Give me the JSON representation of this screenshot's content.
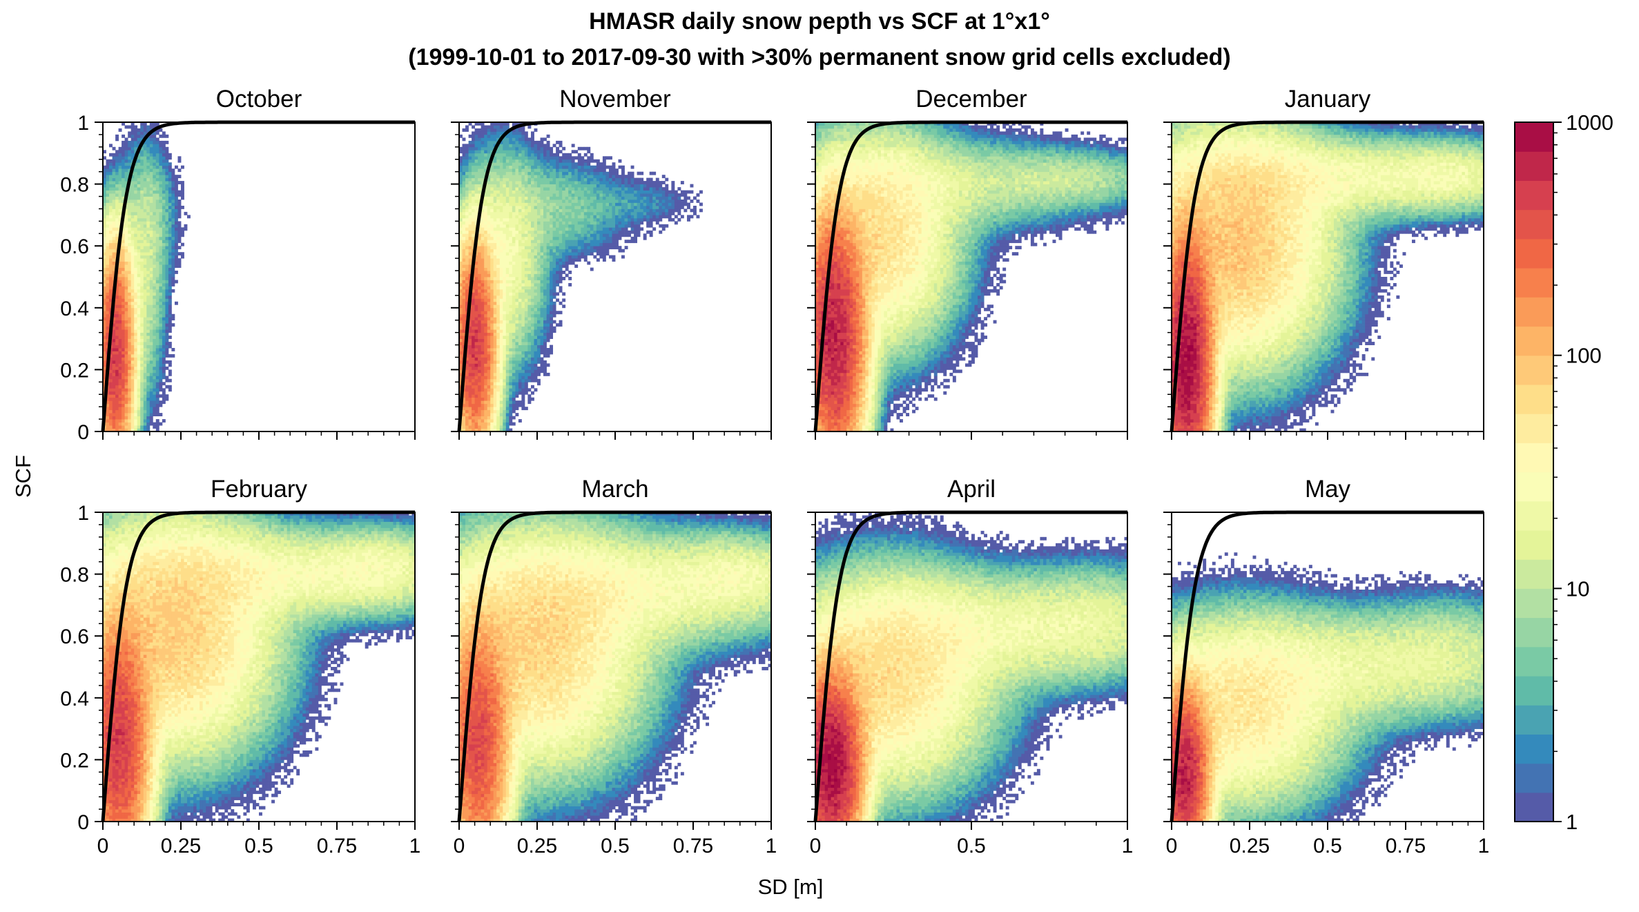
{
  "figure": {
    "title_line1": "HMASR daily snow pepth vs SCF at 1°x1°",
    "title_line2": "(1999-10-01 to 2017-09-30 with >30% permanent snow grid cells excluded)",
    "ylabel": "SCF",
    "xlabel": "SD [m]"
  },
  "chart_data": {
    "type": "heatmap",
    "panels": [
      {
        "title": "October",
        "xlim": [
          0,
          1
        ],
        "ylim": [
          0,
          1
        ],
        "xticks": [
          0,
          0.25,
          0.5,
          0.75,
          1
        ],
        "xtick_labels": [
          "",
          "",
          "",
          "",
          ""
        ],
        "yticks": [
          0,
          0.2,
          0.4,
          0.6,
          0.8,
          1
        ],
        "ytick_labels": [
          "0",
          "0.2",
          "0.4",
          "0.6",
          "0.8",
          "1"
        ],
        "blobs": [
          {
            "cx": 0.04,
            "cy": 0.25,
            "sx": 0.03,
            "sy": 0.18,
            "peak": 500
          },
          {
            "cx": 0.13,
            "cy": 0.5,
            "sx": 0.04,
            "sy": 0.22,
            "peak": 12
          },
          {
            "cx": 0.16,
            "cy": 0.7,
            "sx": 0.05,
            "sy": 0.12,
            "peak": 4
          }
        ]
      },
      {
        "title": "November",
        "xlim": [
          0,
          1
        ],
        "ylim": [
          0,
          1
        ],
        "xticks": [
          0,
          0.25,
          0.5,
          0.75,
          1
        ],
        "xtick_labels": [
          "",
          "",
          "",
          "",
          ""
        ],
        "yticks": [
          0,
          0.2,
          0.4,
          0.6,
          0.8,
          1
        ],
        "ytick_labels": [
          "",
          "",
          "",
          "",
          "",
          ""
        ],
        "blobs": [
          {
            "cx": 0.05,
            "cy": 0.28,
            "sx": 0.035,
            "sy": 0.17,
            "peak": 500
          },
          {
            "cx": 0.14,
            "cy": 0.55,
            "sx": 0.07,
            "sy": 0.18,
            "peak": 25
          },
          {
            "cx": 0.32,
            "cy": 0.72,
            "sx": 0.12,
            "sy": 0.09,
            "peak": 6
          },
          {
            "cx": 0.6,
            "cy": 0.74,
            "sx": 0.1,
            "sy": 0.05,
            "peak": 2
          }
        ]
      },
      {
        "title": "December",
        "xlim": [
          0,
          1
        ],
        "ylim": [
          0,
          1
        ],
        "xticks": [
          0,
          0.5,
          1
        ],
        "xtick_labels": [
          "",
          "",
          ""
        ],
        "yticks": [
          0,
          0.2,
          0.4,
          0.6,
          0.8,
          1
        ],
        "ytick_labels": [
          "",
          "",
          "",
          "",
          "",
          ""
        ],
        "blobs": [
          {
            "cx": 0.06,
            "cy": 0.3,
            "sx": 0.05,
            "sy": 0.2,
            "peak": 700
          },
          {
            "cx": 0.2,
            "cy": 0.62,
            "sx": 0.13,
            "sy": 0.18,
            "peak": 60
          },
          {
            "cx": 0.45,
            "cy": 0.8,
            "sx": 0.25,
            "sy": 0.08,
            "peak": 12
          },
          {
            "cx": 0.85,
            "cy": 0.82,
            "sx": 0.15,
            "sy": 0.05,
            "peak": 8
          }
        ]
      },
      {
        "title": "January",
        "xlim": [
          0,
          1
        ],
        "ylim": [
          0,
          1
        ],
        "xticks": [
          0,
          0.25,
          0.5,
          0.75,
          1
        ],
        "xtick_labels": [
          "",
          "",
          "",
          "",
          ""
        ],
        "yticks": [
          0,
          0.2,
          0.4,
          0.6,
          0.8,
          1
        ],
        "ytick_labels": [
          "",
          "",
          "",
          "",
          "",
          ""
        ],
        "blobs": [
          {
            "cx": 0.05,
            "cy": 0.22,
            "sx": 0.04,
            "sy": 0.2,
            "peak": 900
          },
          {
            "cx": 0.2,
            "cy": 0.6,
            "sx": 0.16,
            "sy": 0.2,
            "peak": 90
          },
          {
            "cx": 0.5,
            "cy": 0.82,
            "sx": 0.3,
            "sy": 0.07,
            "peak": 25
          },
          {
            "cx": 0.9,
            "cy": 0.83,
            "sx": 0.12,
            "sy": 0.06,
            "peak": 15
          }
        ]
      },
      {
        "title": "February",
        "xlim": [
          0,
          1
        ],
        "ylim": [
          0,
          1
        ],
        "xticks": [
          0,
          0.25,
          0.5,
          0.75,
          1
        ],
        "xtick_labels": [
          "0",
          "0.25",
          "0.5",
          "0.75",
          "1"
        ],
        "yticks": [
          0,
          0.2,
          0.4,
          0.6,
          0.8,
          1
        ],
        "ytick_labels": [
          "0",
          "0.2",
          "0.4",
          "0.6",
          "0.8",
          "1"
        ],
        "blobs": [
          {
            "cx": 0.05,
            "cy": 0.25,
            "sx": 0.05,
            "sy": 0.2,
            "peak": 500
          },
          {
            "cx": 0.22,
            "cy": 0.6,
            "sx": 0.17,
            "sy": 0.2,
            "peak": 80
          },
          {
            "cx": 0.55,
            "cy": 0.8,
            "sx": 0.3,
            "sy": 0.08,
            "peak": 25
          },
          {
            "cx": 0.9,
            "cy": 0.82,
            "sx": 0.12,
            "sy": 0.07,
            "peak": 15
          }
        ]
      },
      {
        "title": "March",
        "xlim": [
          0,
          1
        ],
        "ylim": [
          0,
          1
        ],
        "xticks": [
          0,
          0.25,
          0.5,
          0.75,
          1
        ],
        "xtick_labels": [
          "0",
          "0.25",
          "0.5",
          "0.75",
          "1"
        ],
        "yticks": [
          0,
          0.2,
          0.4,
          0.6,
          0.8,
          1
        ],
        "ytick_labels": [
          "",
          "",
          "",
          "",
          "",
          ""
        ],
        "blobs": [
          {
            "cx": 0.06,
            "cy": 0.25,
            "sx": 0.05,
            "sy": 0.2,
            "peak": 400
          },
          {
            "cx": 0.24,
            "cy": 0.55,
            "sx": 0.18,
            "sy": 0.2,
            "peak": 70
          },
          {
            "cx": 0.55,
            "cy": 0.75,
            "sx": 0.3,
            "sy": 0.1,
            "peak": 25
          },
          {
            "cx": 0.9,
            "cy": 0.8,
            "sx": 0.12,
            "sy": 0.07,
            "peak": 15
          }
        ]
      },
      {
        "title": "April",
        "xlim": [
          0,
          1
        ],
        "ylim": [
          0,
          1
        ],
        "xticks": [
          0,
          0.5,
          1
        ],
        "xtick_labels": [
          "0",
          "0.5",
          "1"
        ],
        "yticks": [
          0,
          0.2,
          0.4,
          0.6,
          0.8,
          1
        ],
        "ytick_labels": [
          "",
          "",
          "",
          "",
          "",
          ""
        ],
        "blobs": [
          {
            "cx": 0.05,
            "cy": 0.18,
            "sx": 0.05,
            "sy": 0.15,
            "peak": 900
          },
          {
            "cx": 0.22,
            "cy": 0.45,
            "sx": 0.18,
            "sy": 0.18,
            "peak": 60
          },
          {
            "cx": 0.55,
            "cy": 0.62,
            "sx": 0.3,
            "sy": 0.1,
            "peak": 20
          },
          {
            "cx": 0.9,
            "cy": 0.65,
            "sx": 0.15,
            "sy": 0.1,
            "peak": 10
          }
        ]
      },
      {
        "title": "May",
        "xlim": [
          0,
          1
        ],
        "ylim": [
          0,
          1
        ],
        "xticks": [
          0,
          0.25,
          0.5,
          0.75,
          1
        ],
        "xtick_labels": [
          "0",
          "0.25",
          "0.5",
          "0.75",
          "1"
        ],
        "yticks": [
          0,
          0.2,
          0.4,
          0.6,
          0.8,
          1
        ],
        "ytick_labels": [
          "",
          "",
          "",
          "",
          "",
          ""
        ],
        "blobs": [
          {
            "cx": 0.04,
            "cy": 0.15,
            "sx": 0.04,
            "sy": 0.14,
            "peak": 700
          },
          {
            "cx": 0.2,
            "cy": 0.35,
            "sx": 0.18,
            "sy": 0.16,
            "peak": 50
          },
          {
            "cx": 0.55,
            "cy": 0.5,
            "sx": 0.3,
            "sy": 0.1,
            "peak": 18
          },
          {
            "cx": 0.9,
            "cy": 0.55,
            "sx": 0.15,
            "sy": 0.1,
            "peak": 8
          }
        ]
      }
    ],
    "curve": {
      "color": "#000000",
      "description": "SCF = tanh(SD / 0.075)"
    },
    "colorbar": {
      "scale": "log",
      "range": [
        1,
        1000
      ],
      "tick_labels": [
        "1",
        "10",
        "100",
        "1000"
      ],
      "colormap": "Spectral_r"
    }
  }
}
